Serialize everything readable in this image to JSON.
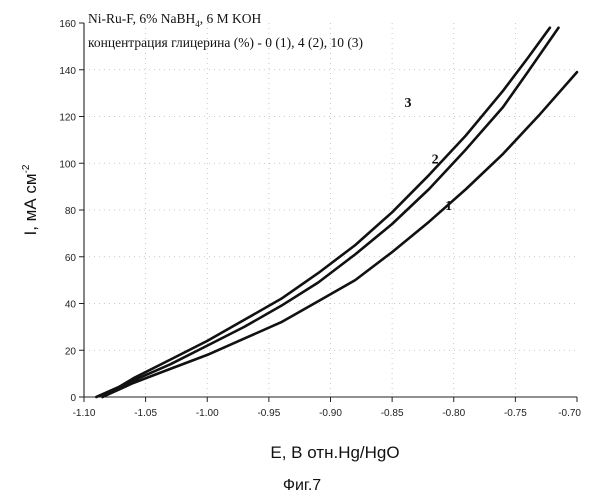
{
  "chart_data": {
    "type": "line",
    "title": "Ni-Ru-F, 6% NaBH",
    "title_subscript": "4",
    "title_suffix": ", 6 M KOH",
    "subtitle": "концентрация глицерина (%) - 0 (1), 4 (2), 10 (3)",
    "xlabel": "E, B отн.Hg/HgO",
    "ylabel": "I, мА см",
    "ylabel_superscript": "-2",
    "xlim": [
      -1.1,
      -0.7
    ],
    "ylim": [
      0,
      160
    ],
    "x_ticks": [
      -1.1,
      -1.05,
      -1.0,
      -0.95,
      -0.9,
      -0.85,
      -0.8,
      -0.75,
      -0.7
    ],
    "x_tick_labels": [
      "-1.10",
      "-1.05",
      "-1.00",
      "-0.95",
      "-0.90",
      "-0.85",
      "-0.80",
      "-0.75",
      "-0.70"
    ],
    "y_ticks": [
      0,
      20,
      40,
      60,
      80,
      100,
      120,
      140,
      160
    ],
    "y_tick_labels": [
      "0",
      "20",
      "40",
      "60",
      "80",
      "100",
      "120",
      "140",
      "160"
    ],
    "grid": "dotted",
    "series": [
      {
        "name": "1",
        "x": [
          -1.085,
          -1.06,
          -1.03,
          -1.0,
          -0.97,
          -0.94,
          -0.91,
          -0.88,
          -0.85,
          -0.82,
          -0.79,
          -0.76,
          -0.73,
          -0.7
        ],
        "y": [
          0,
          6,
          12,
          18,
          25,
          32,
          41,
          50,
          62,
          75,
          89,
          104,
          121,
          139
        ]
      },
      {
        "name": "2",
        "x": [
          -1.09,
          -1.06,
          -1.03,
          -1.0,
          -0.97,
          -0.94,
          -0.91,
          -0.88,
          -0.85,
          -0.82,
          -0.79,
          -0.76,
          -0.74,
          -0.715
        ],
        "y": [
          0,
          7,
          14,
          22,
          30,
          39,
          49,
          61,
          74,
          89,
          106,
          124,
          139,
          158
        ]
      },
      {
        "name": "3",
        "x": [
          -1.085,
          -1.06,
          -1.03,
          -1.0,
          -0.97,
          -0.94,
          -0.91,
          -0.88,
          -0.85,
          -0.82,
          -0.79,
          -0.76,
          -0.74,
          -0.722
        ],
        "y": [
          0,
          8,
          16,
          24,
          33,
          42,
          53,
          65,
          79,
          95,
          112,
          131,
          145,
          158
        ]
      }
    ]
  },
  "figure_caption": "Фиг.7"
}
